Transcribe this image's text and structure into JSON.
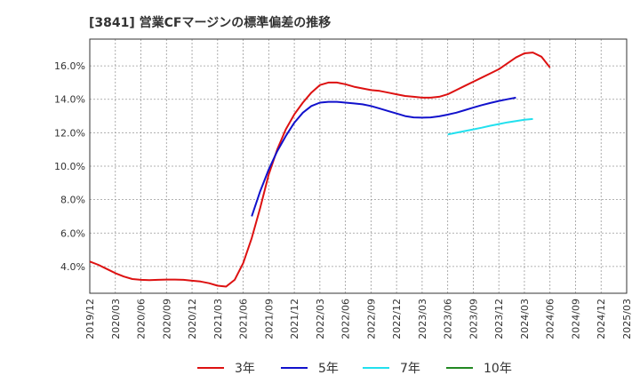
{
  "chart_data": {
    "type": "line",
    "title": "[3841]  営業CFマージンの標準偏差の推移",
    "x_tick_labels": [
      "2019/12",
      "2020/03",
      "2020/06",
      "2020/09",
      "2020/12",
      "2021/03",
      "2021/06",
      "2021/09",
      "2021/12",
      "2022/03",
      "2022/06",
      "2022/09",
      "2022/12",
      "2023/03",
      "2023/06",
      "2023/09",
      "2023/12",
      "2024/03",
      "2024/06",
      "2024/09",
      "2024/12",
      "2025/03"
    ],
    "y_tick_labels": [
      "4.0%",
      "6.0%",
      "8.0%",
      "10.0%",
      "12.0%",
      "14.0%",
      "16.0%"
    ],
    "y_ticks": [
      4,
      6,
      8,
      10,
      12,
      14,
      16
    ],
    "ylim": [
      2.4,
      17.6
    ],
    "x_range_months": [
      0,
      63
    ],
    "grid": true,
    "legend_position": "bottom",
    "series": [
      {
        "name": "3年",
        "color": "#dd1111",
        "points": [
          [
            0,
            4.3
          ],
          [
            1,
            4.1
          ],
          [
            2,
            3.85
          ],
          [
            3,
            3.6
          ],
          [
            4,
            3.4
          ],
          [
            5,
            3.25
          ],
          [
            6,
            3.2
          ],
          [
            7,
            3.18
          ],
          [
            8,
            3.2
          ],
          [
            9,
            3.22
          ],
          [
            10,
            3.22
          ],
          [
            11,
            3.2
          ],
          [
            12,
            3.15
          ],
          [
            13,
            3.1
          ],
          [
            14,
            3.0
          ],
          [
            15,
            2.85
          ],
          [
            16,
            2.8
          ],
          [
            17,
            3.2
          ],
          [
            18,
            4.2
          ],
          [
            19,
            5.7
          ],
          [
            20,
            7.5
          ],
          [
            21,
            9.5
          ],
          [
            22,
            11.0
          ],
          [
            23,
            12.2
          ],
          [
            24,
            13.1
          ],
          [
            25,
            13.8
          ],
          [
            26,
            14.4
          ],
          [
            27,
            14.85
          ],
          [
            28,
            15.0
          ],
          [
            29,
            15.0
          ],
          [
            30,
            14.9
          ],
          [
            31,
            14.75
          ],
          [
            32,
            14.65
          ],
          [
            33,
            14.55
          ],
          [
            34,
            14.5
          ],
          [
            35,
            14.4
          ],
          [
            36,
            14.3
          ],
          [
            37,
            14.2
          ],
          [
            38,
            14.15
          ],
          [
            39,
            14.1
          ],
          [
            40,
            14.1
          ],
          [
            41,
            14.15
          ],
          [
            42,
            14.3
          ],
          [
            43,
            14.55
          ],
          [
            44,
            14.8
          ],
          [
            45,
            15.05
          ],
          [
            46,
            15.3
          ],
          [
            47,
            15.55
          ],
          [
            48,
            15.8
          ],
          [
            49,
            16.15
          ],
          [
            50,
            16.5
          ],
          [
            51,
            16.75
          ],
          [
            52,
            16.8
          ],
          [
            53,
            16.55
          ],
          [
            54,
            15.9
          ]
        ]
      },
      {
        "name": "5年",
        "color": "#1111cc",
        "points": [
          [
            19,
            7.0
          ],
          [
            20,
            8.5
          ],
          [
            21,
            9.8
          ],
          [
            22,
            10.9
          ],
          [
            23,
            11.8
          ],
          [
            24,
            12.6
          ],
          [
            25,
            13.2
          ],
          [
            26,
            13.6
          ],
          [
            27,
            13.8
          ],
          [
            28,
            13.85
          ],
          [
            29,
            13.85
          ],
          [
            30,
            13.8
          ],
          [
            31,
            13.75
          ],
          [
            32,
            13.7
          ],
          [
            33,
            13.6
          ],
          [
            34,
            13.45
          ],
          [
            35,
            13.3
          ],
          [
            36,
            13.15
          ],
          [
            37,
            13.0
          ],
          [
            38,
            12.92
          ],
          [
            39,
            12.9
          ],
          [
            40,
            12.92
          ],
          [
            41,
            12.98
          ],
          [
            42,
            13.08
          ],
          [
            43,
            13.2
          ],
          [
            44,
            13.35
          ],
          [
            45,
            13.5
          ],
          [
            46,
            13.65
          ],
          [
            47,
            13.78
          ],
          [
            48,
            13.9
          ],
          [
            49,
            14.0
          ],
          [
            50,
            14.1
          ]
        ]
      },
      {
        "name": "7年",
        "color": "#22e0ee",
        "points": [
          [
            42,
            11.9
          ],
          [
            43,
            12.0
          ],
          [
            44,
            12.1
          ],
          [
            45,
            12.2
          ],
          [
            46,
            12.3
          ],
          [
            47,
            12.42
          ],
          [
            48,
            12.52
          ],
          [
            49,
            12.62
          ],
          [
            50,
            12.7
          ],
          [
            51,
            12.78
          ],
          [
            52,
            12.82
          ]
        ]
      },
      {
        "name": "10年",
        "color": "#228822",
        "points": []
      }
    ]
  }
}
